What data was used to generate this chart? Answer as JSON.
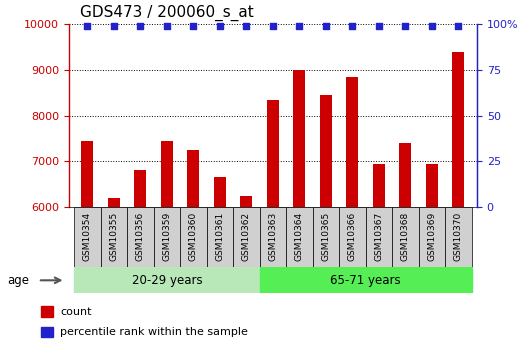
{
  "title": "GDS473 / 200060_s_at",
  "categories": [
    "GSM10354",
    "GSM10355",
    "GSM10356",
    "GSM10359",
    "GSM10360",
    "GSM10361",
    "GSM10362",
    "GSM10363",
    "GSM10364",
    "GSM10365",
    "GSM10366",
    "GSM10367",
    "GSM10368",
    "GSM10369",
    "GSM10370"
  ],
  "counts": [
    7450,
    6200,
    6800,
    7450,
    7250,
    6650,
    6250,
    8350,
    9000,
    8450,
    8850,
    6950,
    7400,
    6950,
    9400
  ],
  "percentile_ranks": [
    100,
    100,
    100,
    100,
    100,
    100,
    100,
    100,
    100,
    100,
    100,
    100,
    100,
    100,
    100
  ],
  "ylim": [
    6000,
    10000
  ],
  "yticks": [
    6000,
    7000,
    8000,
    9000,
    10000
  ],
  "y2lim": [
    0,
    100
  ],
  "y2ticks": [
    0,
    25,
    50,
    75,
    100
  ],
  "y2ticklabels": [
    "0",
    "25",
    "50",
    "75",
    "100%"
  ],
  "bar_color": "#cc0000",
  "scatter_color": "#2222cc",
  "group1_label": "20-29 years",
  "group2_label": "65-71 years",
  "group1_count": 7,
  "group2_count": 8,
  "group1_bg": "#b8e8b8",
  "group2_bg": "#55ee55",
  "age_label": "age",
  "legend_count_label": "count",
  "legend_pct_label": "percentile rank within the sample",
  "tick_color_left": "#cc0000",
  "tick_color_right": "#2222cc",
  "title_fontsize": 11,
  "bar_width": 0.45,
  "xtick_bg": "#d0d0d0",
  "plot_bg": "#ffffff"
}
